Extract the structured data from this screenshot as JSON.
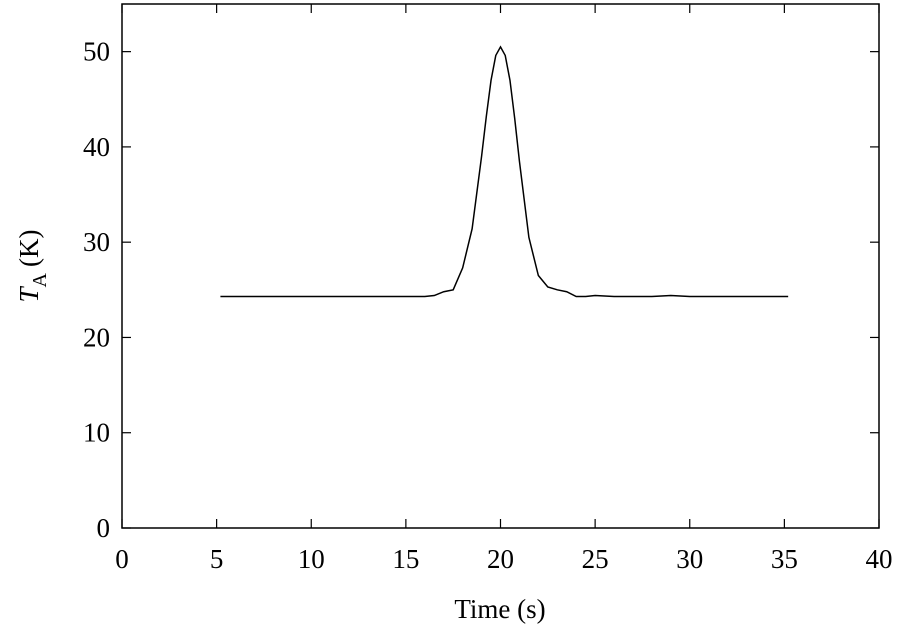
{
  "chart_data": {
    "type": "line",
    "xlabel": "Time (s)",
    "ylabel_symbol": "T",
    "ylabel_subscript": "A",
    "ylabel_unit": "(K)",
    "x": [
      5.2,
      6,
      7,
      8,
      9,
      10,
      11,
      12,
      13,
      14,
      15,
      16,
      16.5,
      17,
      17.5,
      18,
      18.5,
      19,
      19.25,
      19.5,
      19.75,
      20,
      20.25,
      20.5,
      20.75,
      21,
      21.5,
      22,
      22.5,
      23,
      23.5,
      24,
      24.5,
      25,
      26,
      27,
      28,
      29,
      30,
      31,
      32,
      33,
      34,
      35,
      35.2
    ],
    "series": [
      {
        "color": "#000000",
        "values": [
          24.3,
          24.3,
          24.3,
          24.3,
          24.3,
          24.3,
          24.3,
          24.3,
          24.3,
          24.3,
          24.3,
          24.3,
          24.4,
          24.8,
          25.0,
          27.3,
          31.4,
          39.0,
          43.2,
          47.0,
          49.6,
          50.5,
          49.6,
          47.0,
          43.0,
          38.5,
          30.5,
          26.5,
          25.3,
          25.0,
          24.8,
          24.3,
          24.3,
          24.4,
          24.3,
          24.3,
          24.3,
          24.4,
          24.3,
          24.3,
          24.3,
          24.3,
          24.3,
          24.3,
          24.3
        ]
      }
    ],
    "xlim": [
      0,
      40
    ],
    "xticks": [
      0,
      5,
      10,
      15,
      20,
      25,
      30,
      35,
      40
    ],
    "ylim": [
      0,
      55
    ],
    "yticks": [
      0,
      10,
      20,
      30,
      40,
      50
    ]
  }
}
